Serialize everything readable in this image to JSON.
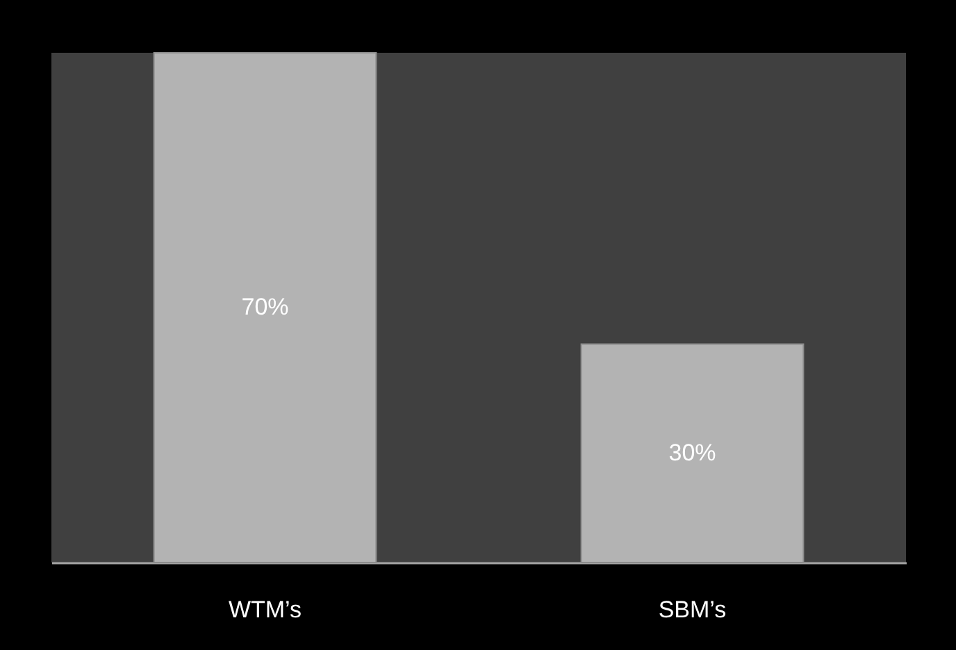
{
  "chart_data": {
    "type": "bar",
    "categories": [
      "WTM’s",
      "SBM’s"
    ],
    "values": [
      70,
      30
    ],
    "value_labels": [
      "70%",
      "30%"
    ],
    "color": "#b3b3b3"
  }
}
